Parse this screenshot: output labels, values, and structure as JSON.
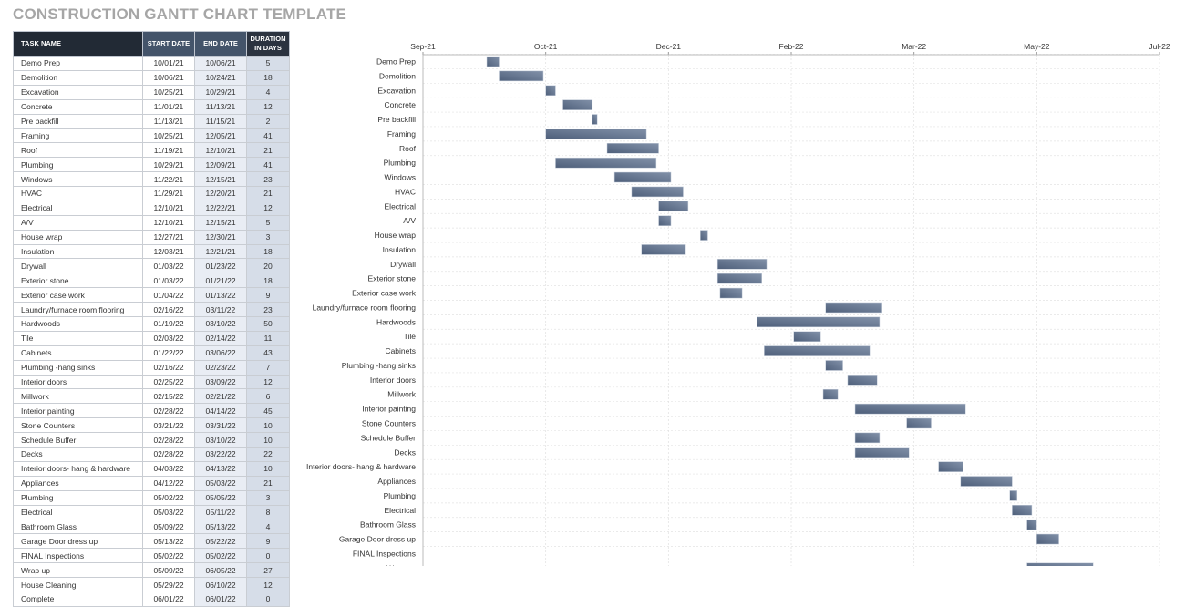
{
  "title": "CONSTRUCTION GANTT CHART TEMPLATE",
  "table": {
    "headers": {
      "task": "TASK NAME",
      "start": "START DATE",
      "end": "END DATE",
      "duration_line1": "DURATION",
      "duration_line2": "IN DAYS"
    },
    "rows": [
      {
        "task": "Demo Prep",
        "start": "10/01/21",
        "end": "10/06/21",
        "duration": "5"
      },
      {
        "task": "Demolition",
        "start": "10/06/21",
        "end": "10/24/21",
        "duration": "18"
      },
      {
        "task": "Excavation",
        "start": "10/25/21",
        "end": "10/29/21",
        "duration": "4"
      },
      {
        "task": "Concrete",
        "start": "11/01/21",
        "end": "11/13/21",
        "duration": "12"
      },
      {
        "task": "Pre backfill",
        "start": "11/13/21",
        "end": "11/15/21",
        "duration": "2"
      },
      {
        "task": "Framing",
        "start": "10/25/21",
        "end": "12/05/21",
        "duration": "41"
      },
      {
        "task": "Roof",
        "start": "11/19/21",
        "end": "12/10/21",
        "duration": "21"
      },
      {
        "task": "Plumbing",
        "start": "10/29/21",
        "end": "12/09/21",
        "duration": "41"
      },
      {
        "task": "Windows",
        "start": "11/22/21",
        "end": "12/15/21",
        "duration": "23"
      },
      {
        "task": "HVAC",
        "start": "11/29/21",
        "end": "12/20/21",
        "duration": "21"
      },
      {
        "task": "Electrical",
        "start": "12/10/21",
        "end": "12/22/21",
        "duration": "12"
      },
      {
        "task": "A/V",
        "start": "12/10/21",
        "end": "12/15/21",
        "duration": "5"
      },
      {
        "task": "House wrap",
        "start": "12/27/21",
        "end": "12/30/21",
        "duration": "3"
      },
      {
        "task": "Insulation",
        "start": "12/03/21",
        "end": "12/21/21",
        "duration": "18"
      },
      {
        "task": "Drywall",
        "start": "01/03/22",
        "end": "01/23/22",
        "duration": "20"
      },
      {
        "task": "Exterior stone",
        "start": "01/03/22",
        "end": "01/21/22",
        "duration": "18"
      },
      {
        "task": "Exterior case work",
        "start": "01/04/22",
        "end": "01/13/22",
        "duration": "9"
      },
      {
        "task": "Laundry/furnace room flooring",
        "start": "02/16/22",
        "end": "03/11/22",
        "duration": "23"
      },
      {
        "task": "Hardwoods",
        "start": "01/19/22",
        "end": "03/10/22",
        "duration": "50"
      },
      {
        "task": "Tile",
        "start": "02/03/22",
        "end": "02/14/22",
        "duration": "11"
      },
      {
        "task": "Cabinets",
        "start": "01/22/22",
        "end": "03/06/22",
        "duration": "43"
      },
      {
        "task": "Plumbing -hang sinks",
        "start": "02/16/22",
        "end": "02/23/22",
        "duration": "7"
      },
      {
        "task": "Interior doors",
        "start": "02/25/22",
        "end": "03/09/22",
        "duration": "12"
      },
      {
        "task": "Millwork",
        "start": "02/15/22",
        "end": "02/21/22",
        "duration": "6"
      },
      {
        "task": "Interior painting",
        "start": "02/28/22",
        "end": "04/14/22",
        "duration": "45"
      },
      {
        "task": "Stone Counters",
        "start": "03/21/22",
        "end": "03/31/22",
        "duration": "10"
      },
      {
        "task": "Schedule Buffer",
        "start": "02/28/22",
        "end": "03/10/22",
        "duration": "10"
      },
      {
        "task": "Decks",
        "start": "02/28/22",
        "end": "03/22/22",
        "duration": "22"
      },
      {
        "task": "Interior doors- hang & hardware",
        "start": "04/03/22",
        "end": "04/13/22",
        "duration": "10"
      },
      {
        "task": "Appliances",
        "start": "04/12/22",
        "end": "05/03/22",
        "duration": "21"
      },
      {
        "task": "Plumbing",
        "start": "05/02/22",
        "end": "05/05/22",
        "duration": "3"
      },
      {
        "task": "Electrical",
        "start": "05/03/22",
        "end": "05/11/22",
        "duration": "8"
      },
      {
        "task": "Bathroom Glass",
        "start": "05/09/22",
        "end": "05/13/22",
        "duration": "4"
      },
      {
        "task": "Garage Door dress up",
        "start": "05/13/22",
        "end": "05/22/22",
        "duration": "9"
      },
      {
        "task": "FINAL Inspections",
        "start": "05/02/22",
        "end": "05/02/22",
        "duration": "0"
      },
      {
        "task": "Wrap up",
        "start": "05/09/22",
        "end": "06/05/22",
        "duration": "27"
      },
      {
        "task": "House Cleaning",
        "start": "05/29/22",
        "end": "06/10/22",
        "duration": "12"
      },
      {
        "task": "Complete",
        "start": "06/01/22",
        "end": "06/01/22",
        "duration": "0"
      }
    ]
  },
  "chart_data": {
    "type": "bar",
    "orientation": "horizontal-gantt",
    "xlim": [
      "2021-09-05",
      "2022-07-02"
    ],
    "x_ticks": [
      {
        "date": "2021-09-05",
        "label": "Sep-21"
      },
      {
        "date": "2021-10-25",
        "label": "Oct-21"
      },
      {
        "date": "2021-12-14",
        "label": "Dec-21"
      },
      {
        "date": "2022-02-02",
        "label": "Feb-22"
      },
      {
        "date": "2022-03-24",
        "label": "Mar-22"
      },
      {
        "date": "2022-05-13",
        "label": "May-22"
      },
      {
        "date": "2022-07-02",
        "label": "Jul-22"
      }
    ],
    "grid": true,
    "bar_color": "#6b7d99",
    "bar_color_dark": "#4e5f7a"
  }
}
